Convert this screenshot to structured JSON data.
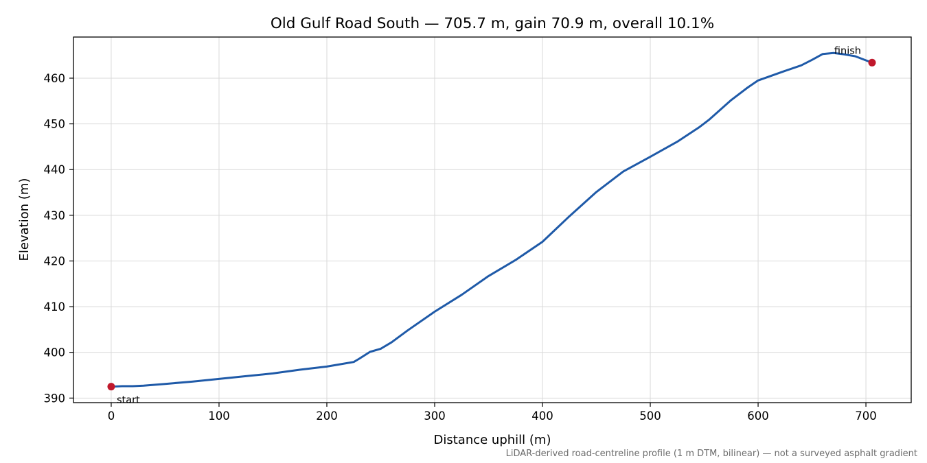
{
  "chart_data": {
    "type": "line",
    "title": "Old Gulf Road South — 705.7 m, gain 70.9 m, overall 10.1%",
    "xlabel": "Distance uphill (m)",
    "ylabel": "Elevation (m)",
    "xlim": [
      -35,
      742
    ],
    "ylim": [
      389,
      469
    ],
    "xticks": [
      0,
      100,
      200,
      300,
      400,
      500,
      600,
      700
    ],
    "yticks": [
      390,
      400,
      410,
      420,
      430,
      440,
      450,
      460
    ],
    "grid": true,
    "series": [
      {
        "color": "#1f5aa8",
        "x": [
          0,
          10,
          20,
          30,
          50,
          75,
          100,
          125,
          150,
          175,
          200,
          215,
          225,
          230,
          240,
          250,
          260,
          275,
          300,
          325,
          350,
          375,
          400,
          425,
          450,
          475,
          500,
          525,
          545,
          555,
          575,
          590,
          600,
          625,
          640,
          650,
          660,
          670,
          680,
          690,
          700,
          705.7
        ],
        "y": [
          392.5,
          392.6,
          392.6,
          392.7,
          393.1,
          393.6,
          394.2,
          394.8,
          395.4,
          396.2,
          396.9,
          397.5,
          397.9,
          398.6,
          400.1,
          400.8,
          402.2,
          404.8,
          408.9,
          412.6,
          416.7,
          420.2,
          424.2,
          429.8,
          435.1,
          439.6,
          442.8,
          446.1,
          449.2,
          451.0,
          455.2,
          457.9,
          459.5,
          461.6,
          462.8,
          464.0,
          465.3,
          465.5,
          465.2,
          464.8,
          463.9,
          463.4
        ]
      }
    ],
    "markers": [
      {
        "x": 0,
        "y": 392.5,
        "label": "start",
        "color": "#c0182c"
      },
      {
        "x": 705.7,
        "y": 463.4,
        "label": "finish",
        "color": "#c0182c"
      }
    ],
    "footnote": "LiDAR-derived road-centreline profile (1 m DTM, bilinear) — not a surveyed asphalt gradient"
  }
}
